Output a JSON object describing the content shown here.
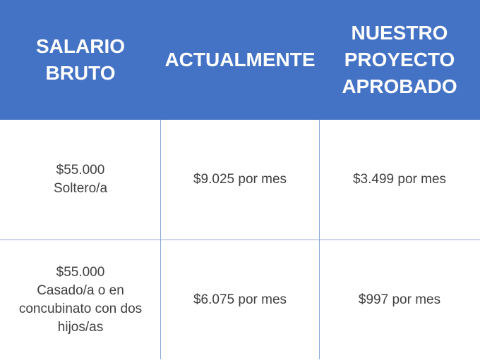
{
  "colors": {
    "header_bg": "#4472c4",
    "header_text": "#ffffff",
    "body_text": "#404040",
    "grid_line": "#8eaadb"
  },
  "table": {
    "headers": [
      "SALARIO\nBRUTO",
      "ACTUALMENTE",
      "NUESTRO\nPROYECTO\nAPROBADO"
    ],
    "rows": [
      {
        "salario_lines": [
          "$55.000",
          "Soltero/a"
        ],
        "actualmente": "$9.025 por mes",
        "proyecto": "$3.499 por mes"
      },
      {
        "salario_lines": [
          "$55.000",
          "Casado/a o en",
          "concubinato con dos",
          "hijos/as"
        ],
        "actualmente": "$6.075 por mes",
        "proyecto": "$997 por mes"
      }
    ]
  }
}
